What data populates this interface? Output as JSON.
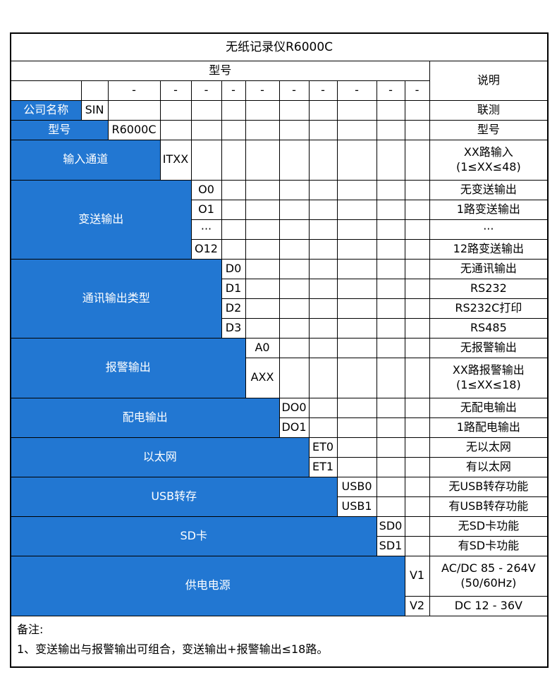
{
  "colors": {
    "accent_blue": "#2277d2",
    "grid_line": "#000000",
    "text_on_blue": "#ffffff",
    "background": "#ffffff"
  },
  "table": {
    "title": "无纸记录仪R6000C",
    "header": {
      "model_label": "型号",
      "desc_label": "说明",
      "dash": "-",
      "dash_count": 10,
      "empty_lead_cells": 2
    },
    "groups": [
      {
        "label": "公司名称",
        "rows": [
          {
            "code": "SIN",
            "desc": [
              "联测"
            ]
          }
        ]
      },
      {
        "label": "型号",
        "rows": [
          {
            "code": "R6000C",
            "desc": [
              "型号"
            ]
          }
        ]
      },
      {
        "label": "输入通道",
        "rows": [
          {
            "code": "ITXX",
            "desc": [
              "XX路输入",
              "(1≤XX≤48)"
            ]
          }
        ]
      },
      {
        "label": "变送输出",
        "rows": [
          {
            "code": "O0",
            "desc": [
              "无变送输出"
            ]
          },
          {
            "code": "O1",
            "desc": [
              "1路变送输出"
            ]
          },
          {
            "code": "···",
            "desc": [
              "···"
            ]
          },
          {
            "code": "O12",
            "desc": [
              "12路变送输出"
            ]
          }
        ]
      },
      {
        "label": "通讯输出类型",
        "rows": [
          {
            "code": "D0",
            "desc": [
              "无通讯输出"
            ]
          },
          {
            "code": "D1",
            "desc": [
              "RS232"
            ]
          },
          {
            "code": "D2",
            "desc": [
              "RS232C打印"
            ]
          },
          {
            "code": "D3",
            "desc": [
              "RS485"
            ]
          }
        ]
      },
      {
        "label": "报警输出",
        "rows": [
          {
            "code": "A0",
            "desc": [
              "无报警输出"
            ]
          },
          {
            "code": "AXX",
            "desc": [
              "XX路报警输出",
              "(1≤XX≤18)"
            ]
          }
        ]
      },
      {
        "label": "配电输出",
        "rows": [
          {
            "code": "DO0",
            "desc": [
              "无配电输出"
            ]
          },
          {
            "code": "DO1",
            "desc": [
              "1路配电输出"
            ]
          }
        ]
      },
      {
        "label": "以太网",
        "rows": [
          {
            "code": "ET0",
            "desc": [
              "无以太网"
            ]
          },
          {
            "code": "ET1",
            "desc": [
              "有以太网"
            ]
          }
        ]
      },
      {
        "label": "USB转存",
        "rows": [
          {
            "code": "USB0",
            "desc": [
              "无USB转存功能"
            ]
          },
          {
            "code": "USB1",
            "desc": [
              "有USB转存功能"
            ]
          }
        ]
      },
      {
        "label": "SD卡",
        "rows": [
          {
            "code": "SD0",
            "desc": [
              "无SD卡功能"
            ]
          },
          {
            "code": "SD1",
            "desc": [
              "有SD卡功能"
            ]
          }
        ]
      },
      {
        "label": "供电电源",
        "rows": [
          {
            "code": "V1",
            "desc": [
              "AC/DC 85 - 264V",
              "(50/60Hz)"
            ]
          },
          {
            "code": "V2",
            "desc": [
              "DC 12 - 36V"
            ]
          }
        ]
      }
    ],
    "note": {
      "label": "备注:",
      "lines": [
        "1、变送输出与报警输出可组合，变送输出+报警输出≤18路。"
      ]
    }
  }
}
